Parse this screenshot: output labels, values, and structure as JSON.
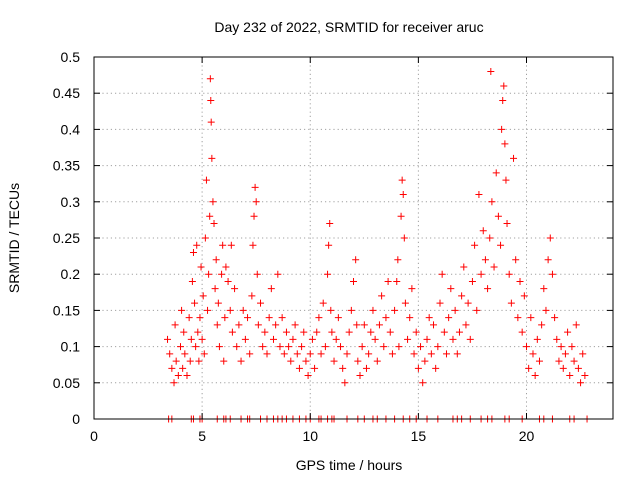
{
  "chart_data": {
    "type": "scatter",
    "title": "Day 232 of 2022, SRMTID for receiver aruc",
    "xlabel": "GPS time / hours",
    "ylabel": "SRMTID / TECUs",
    "xlim": [
      0,
      24
    ],
    "ylim": [
      0,
      0.5
    ],
    "xticks": [
      0,
      5,
      10,
      15,
      20
    ],
    "xtick_labels": [
      "0",
      "5",
      "10",
      "15",
      "20"
    ],
    "yticks": [
      0,
      0.05,
      0.1,
      0.15,
      0.2,
      0.25,
      0.3,
      0.35,
      0.4,
      0.45,
      0.5
    ],
    "ytick_labels": [
      "0",
      "0.05",
      "0.1",
      "0.15",
      "0.2",
      "0.25",
      "0.3",
      "0.35",
      "0.4",
      "0.45",
      "0.5"
    ],
    "grid": true,
    "marker": "+",
    "color": "#ff0000",
    "series": [
      {
        "name": "SRMTID",
        "points": [
          [
            3.4,
            0.11
          ],
          [
            3.5,
            0.09
          ],
          [
            3.6,
            0.07
          ],
          [
            3.7,
            0.05
          ],
          [
            3.75,
            0.13
          ],
          [
            3.8,
            0.08
          ],
          [
            3.9,
            0.06
          ],
          [
            4.0,
            0.1
          ],
          [
            4.05,
            0.15
          ],
          [
            4.1,
            0.07
          ],
          [
            4.15,
            0.12
          ],
          [
            4.2,
            0.09
          ],
          [
            4.3,
            0.06
          ],
          [
            4.4,
            0.14
          ],
          [
            4.45,
            0.08
          ],
          [
            4.5,
            0.11
          ],
          [
            4.55,
            0.19
          ],
          [
            4.6,
            0.23
          ],
          [
            4.65,
            0.16
          ],
          [
            4.7,
            0.1
          ],
          [
            4.75,
            0.24
          ],
          [
            4.8,
            0.12
          ],
          [
            4.85,
            0.08
          ],
          [
            4.9,
            0.14
          ],
          [
            4.95,
            0.21
          ],
          [
            5.0,
            0.11
          ],
          [
            5.05,
            0.17
          ],
          [
            5.1,
            0.09
          ],
          [
            5.15,
            0.25
          ],
          [
            5.2,
            0.33
          ],
          [
            5.25,
            0.15
          ],
          [
            5.3,
            0.2
          ],
          [
            5.35,
            0.28
          ],
          [
            5.38,
            0.47
          ],
          [
            5.4,
            0.44
          ],
          [
            5.42,
            0.41
          ],
          [
            5.45,
            0.36
          ],
          [
            5.5,
            0.3
          ],
          [
            5.55,
            0.27
          ],
          [
            5.6,
            0.18
          ],
          [
            5.65,
            0.22
          ],
          [
            5.7,
            0.13
          ],
          [
            5.75,
            0.16
          ],
          [
            5.8,
            0.1
          ],
          [
            5.9,
            0.2
          ],
          [
            5.95,
            0.24
          ],
          [
            6.0,
            0.08
          ],
          [
            6.05,
            0.14
          ],
          [
            6.1,
            0.21
          ],
          [
            6.2,
            0.19
          ],
          [
            6.3,
            0.15
          ],
          [
            6.35,
            0.24
          ],
          [
            6.4,
            0.12
          ],
          [
            6.5,
            0.18
          ],
          [
            6.6,
            0.1
          ],
          [
            6.7,
            0.13
          ],
          [
            6.8,
            0.08
          ],
          [
            6.9,
            0.15
          ],
          [
            7.0,
            0.11
          ],
          [
            7.1,
            0.14
          ],
          [
            7.2,
            0.09
          ],
          [
            7.3,
            0.17
          ],
          [
            7.35,
            0.24
          ],
          [
            7.4,
            0.28
          ],
          [
            7.45,
            0.32
          ],
          [
            7.5,
            0.3
          ],
          [
            7.55,
            0.2
          ],
          [
            7.6,
            0.13
          ],
          [
            7.7,
            0.16
          ],
          [
            7.8,
            0.1
          ],
          [
            7.9,
            0.12
          ],
          [
            8.0,
            0.09
          ],
          [
            8.1,
            0.14
          ],
          [
            8.2,
            0.18
          ],
          [
            8.3,
            0.11
          ],
          [
            8.4,
            0.13
          ],
          [
            8.5,
            0.2
          ],
          [
            8.6,
            0.1
          ],
          [
            8.7,
            0.14
          ],
          [
            8.8,
            0.09
          ],
          [
            8.9,
            0.12
          ],
          [
            9.0,
            0.1
          ],
          [
            9.1,
            0.08
          ],
          [
            9.2,
            0.11
          ],
          [
            9.3,
            0.13
          ],
          [
            9.4,
            0.09
          ],
          [
            9.5,
            0.07
          ],
          [
            9.6,
            0.1
          ],
          [
            9.7,
            0.12
          ],
          [
            9.8,
            0.08
          ],
          [
            9.9,
            0.06
          ],
          [
            10.0,
            0.09
          ],
          [
            10.1,
            0.11
          ],
          [
            10.2,
            0.07
          ],
          [
            10.3,
            0.12
          ],
          [
            10.4,
            0.14
          ],
          [
            10.5,
            0.09
          ],
          [
            10.6,
            0.16
          ],
          [
            10.7,
            0.1
          ],
          [
            10.8,
            0.2
          ],
          [
            10.85,
            0.24
          ],
          [
            10.9,
            0.27
          ],
          [
            10.95,
            0.15
          ],
          [
            11.0,
            0.12
          ],
          [
            11.1,
            0.08
          ],
          [
            11.2,
            0.11
          ],
          [
            11.3,
            0.14
          ],
          [
            11.4,
            0.1
          ],
          [
            11.5,
            0.07
          ],
          [
            11.6,
            0.05
          ],
          [
            11.7,
            0.09
          ],
          [
            11.8,
            0.12
          ],
          [
            11.9,
            0.15
          ],
          [
            12.0,
            0.19
          ],
          [
            12.1,
            0.22
          ],
          [
            12.15,
            0.13
          ],
          [
            12.2,
            0.08
          ],
          [
            12.3,
            0.06
          ],
          [
            12.4,
            0.1
          ],
          [
            12.5,
            0.13
          ],
          [
            12.6,
            0.07
          ],
          [
            12.7,
            0.09
          ],
          [
            12.8,
            0.12
          ],
          [
            12.9,
            0.15
          ],
          [
            13.0,
            0.11
          ],
          [
            13.1,
            0.08
          ],
          [
            13.2,
            0.13
          ],
          [
            13.3,
            0.17
          ],
          [
            13.4,
            0.1
          ],
          [
            13.5,
            0.14
          ],
          [
            13.6,
            0.19
          ],
          [
            13.7,
            0.12
          ],
          [
            13.8,
            0.09
          ],
          [
            13.9,
            0.15
          ],
          [
            14.0,
            0.19
          ],
          [
            14.05,
            0.22
          ],
          [
            14.1,
            0.1
          ],
          [
            14.2,
            0.28
          ],
          [
            14.25,
            0.33
          ],
          [
            14.3,
            0.31
          ],
          [
            14.35,
            0.25
          ],
          [
            14.4,
            0.16
          ],
          [
            14.5,
            0.11
          ],
          [
            14.6,
            0.14
          ],
          [
            14.7,
            0.18
          ],
          [
            14.8,
            0.09
          ],
          [
            14.9,
            0.12
          ],
          [
            15.0,
            0.07
          ],
          [
            15.1,
            0.1
          ],
          [
            15.2,
            0.05
          ],
          [
            15.3,
            0.08
          ],
          [
            15.4,
            0.11
          ],
          [
            15.5,
            0.14
          ],
          [
            15.6,
            0.09
          ],
          [
            15.7,
            0.13
          ],
          [
            15.8,
            0.07
          ],
          [
            15.9,
            0.1
          ],
          [
            16.0,
            0.16
          ],
          [
            16.1,
            0.2
          ],
          [
            16.2,
            0.12
          ],
          [
            16.3,
            0.09
          ],
          [
            16.4,
            0.14
          ],
          [
            16.5,
            0.18
          ],
          [
            16.6,
            0.11
          ],
          [
            16.7,
            0.15
          ],
          [
            16.8,
            0.09
          ],
          [
            16.9,
            0.12
          ],
          [
            17.0,
            0.17
          ],
          [
            17.1,
            0.21
          ],
          [
            17.2,
            0.13
          ],
          [
            17.3,
            0.16
          ],
          [
            17.4,
            0.11
          ],
          [
            17.5,
            0.19
          ],
          [
            17.6,
            0.24
          ],
          [
            17.7,
            0.15
          ],
          [
            17.8,
            0.31
          ],
          [
            17.9,
            0.2
          ],
          [
            18.0,
            0.26
          ],
          [
            18.1,
            0.22
          ],
          [
            18.2,
            0.18
          ],
          [
            18.3,
            0.25
          ],
          [
            18.35,
            0.48
          ],
          [
            18.4,
            0.3
          ],
          [
            18.5,
            0.21
          ],
          [
            18.6,
            0.34
          ],
          [
            18.7,
            0.28
          ],
          [
            18.8,
            0.24
          ],
          [
            18.85,
            0.4
          ],
          [
            18.9,
            0.44
          ],
          [
            18.95,
            0.46
          ],
          [
            19.0,
            0.38
          ],
          [
            19.05,
            0.33
          ],
          [
            19.1,
            0.27
          ],
          [
            19.2,
            0.2
          ],
          [
            19.3,
            0.16
          ],
          [
            19.4,
            0.36
          ],
          [
            19.5,
            0.22
          ],
          [
            19.6,
            0.14
          ],
          [
            19.7,
            0.19
          ],
          [
            19.8,
            0.12
          ],
          [
            19.9,
            0.17
          ],
          [
            20.0,
            0.1
          ],
          [
            20.1,
            0.07
          ],
          [
            20.2,
            0.14
          ],
          [
            20.3,
            0.09
          ],
          [
            20.4,
            0.06
          ],
          [
            20.5,
            0.11
          ],
          [
            20.6,
            0.08
          ],
          [
            20.7,
            0.13
          ],
          [
            20.8,
            0.18
          ],
          [
            20.9,
            0.15
          ],
          [
            21.0,
            0.22
          ],
          [
            21.1,
            0.25
          ],
          [
            21.2,
            0.2
          ],
          [
            21.3,
            0.14
          ],
          [
            21.4,
            0.11
          ],
          [
            21.5,
            0.08
          ],
          [
            21.6,
            0.1
          ],
          [
            21.7,
            0.07
          ],
          [
            21.8,
            0.09
          ],
          [
            21.9,
            0.12
          ],
          [
            22.0,
            0.06
          ],
          [
            22.1,
            0.1
          ],
          [
            22.2,
            0.08
          ],
          [
            22.3,
            0.13
          ],
          [
            22.4,
            0.07
          ],
          [
            22.5,
            0.05
          ],
          [
            22.6,
            0.09
          ],
          [
            22.7,
            0.06
          ],
          [
            3.45,
            0.0
          ],
          [
            3.6,
            0.0
          ],
          [
            4.5,
            0.0
          ],
          [
            4.6,
            0.0
          ],
          [
            4.9,
            0.0
          ],
          [
            5.0,
            0.0
          ],
          [
            5.7,
            0.0
          ],
          [
            6.0,
            0.0
          ],
          [
            6.1,
            0.0
          ],
          [
            6.3,
            0.0
          ],
          [
            6.8,
            0.0
          ],
          [
            7.1,
            0.0
          ],
          [
            7.2,
            0.0
          ],
          [
            7.7,
            0.0
          ],
          [
            8.0,
            0.0
          ],
          [
            8.3,
            0.0
          ],
          [
            8.5,
            0.0
          ],
          [
            8.7,
            0.0
          ],
          [
            8.9,
            0.0
          ],
          [
            9.2,
            0.0
          ],
          [
            9.5,
            0.0
          ],
          [
            9.8,
            0.0
          ],
          [
            10.0,
            0.0
          ],
          [
            10.4,
            0.0
          ],
          [
            10.5,
            0.0
          ],
          [
            10.8,
            0.0
          ],
          [
            11.0,
            0.0
          ],
          [
            11.1,
            0.0
          ],
          [
            11.7,
            0.0
          ],
          [
            12.2,
            0.0
          ],
          [
            12.5,
            0.0
          ],
          [
            12.9,
            0.0
          ],
          [
            13.1,
            0.0
          ],
          [
            13.5,
            0.0
          ],
          [
            13.9,
            0.0
          ],
          [
            14.3,
            0.0
          ],
          [
            14.6,
            0.0
          ],
          [
            14.9,
            0.0
          ],
          [
            15.4,
            0.0
          ],
          [
            15.9,
            0.0
          ],
          [
            16.6,
            0.0
          ],
          [
            16.8,
            0.0
          ],
          [
            17.0,
            0.0
          ],
          [
            17.4,
            0.0
          ],
          [
            17.9,
            0.0
          ],
          [
            18.2,
            0.0
          ],
          [
            18.4,
            0.0
          ],
          [
            19.0,
            0.0
          ],
          [
            19.2,
            0.0
          ],
          [
            19.8,
            0.0
          ],
          [
            20.6,
            0.0
          ],
          [
            20.8,
            0.0
          ],
          [
            21.2,
            0.0
          ],
          [
            22.0,
            0.0
          ],
          [
            22.2,
            0.0
          ],
          [
            22.8,
            0.0
          ]
        ]
      }
    ]
  }
}
